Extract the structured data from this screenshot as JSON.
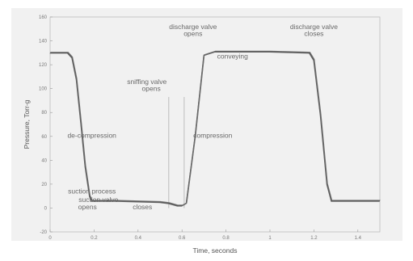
{
  "chart_data": {
    "type": "line",
    "title": "",
    "xlabel": "Time, seconds",
    "ylabel": "Pressure, Torr-g",
    "xlim": [
      0,
      1.5
    ],
    "ylim": [
      -20,
      160
    ],
    "x_ticks": [
      "0",
      "0.2",
      "0.4",
      "0.6",
      "0.8",
      "1",
      "1.2",
      "1.4"
    ],
    "y_ticks": [
      "-20",
      "0",
      "20",
      "40",
      "60",
      "80",
      "100",
      "120",
      "140",
      "160"
    ],
    "grid": false,
    "series": [
      {
        "name": "",
        "x": [
          0,
          0.08,
          0.1,
          0.12,
          0.14,
          0.16,
          0.18,
          0.19,
          0.3,
          0.5,
          0.54,
          0.58,
          0.6,
          0.62,
          0.66,
          0.7,
          0.75,
          1.0,
          1.18,
          1.2,
          1.23,
          1.26,
          1.28,
          1.5
        ],
        "y": [
          130,
          130,
          126,
          108,
          72,
          35,
          10,
          6,
          6,
          5,
          4,
          2,
          2,
          4,
          60,
          128,
          131,
          131,
          130,
          124,
          78,
          20,
          6,
          6
        ]
      }
    ],
    "annotations": [
      {
        "text": "discharge valve",
        "x": 0.65,
        "y": 150
      },
      {
        "text": "opens",
        "x": 0.65,
        "y": 144
      },
      {
        "text": "discharge valve",
        "x": 1.2,
        "y": 150
      },
      {
        "text": "closes",
        "x": 1.2,
        "y": 144
      },
      {
        "text": "conveying",
        "x": 0.83,
        "y": 125
      },
      {
        "text": "sniffing valve",
        "x": 0.44,
        "y": 104
      },
      {
        "text": "opens",
        "x": 0.46,
        "y": 98
      },
      {
        "text": "de-compression",
        "x": 0.19,
        "y": 59
      },
      {
        "text": "compression",
        "x": 0.74,
        "y": 59
      },
      {
        "text": "suction process",
        "x": 0.19,
        "y": 12
      },
      {
        "text": "suction valve",
        "x": 0.22,
        "y": 5
      },
      {
        "text": "opens",
        "x": 0.17,
        "y": -1
      },
      {
        "text": "closes",
        "x": 0.42,
        "y": -1
      }
    ],
    "markers": [
      {
        "x": 0.54,
        "y_from": 0,
        "y_to": 93
      },
      {
        "x": 0.61,
        "y_from": 0,
        "y_to": 93
      }
    ]
  }
}
